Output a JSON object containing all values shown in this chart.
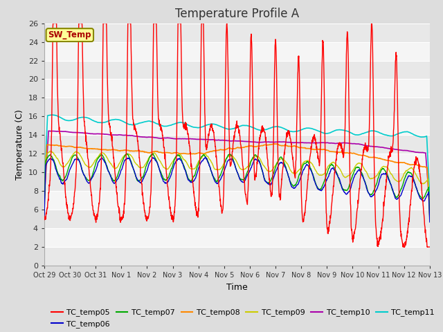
{
  "title": "Temperature Profile A",
  "xlabel": "Time",
  "ylabel": "Temperature (C)",
  "ylim": [
    0,
    26
  ],
  "yticks": [
    0,
    2,
    4,
    6,
    8,
    10,
    12,
    14,
    16,
    18,
    20,
    22,
    24,
    26
  ],
  "xtick_labels": [
    "Oct 29",
    "Oct 30",
    "Oct 31",
    "Nov 1",
    "Nov 2",
    "Nov 3",
    "Nov 4",
    "Nov 5",
    "Nov 6",
    "Nov 7",
    "Nov 8",
    "Nov 9",
    "Nov 10",
    "Nov 11",
    "Nov 12",
    "Nov 13"
  ],
  "sw_temp_label": "SW_Temp",
  "sw_temp_color": "#aa0000",
  "sw_temp_bg": "#ffff99",
  "sw_temp_border": "#888800",
  "series_colors": {
    "TC_temp05": "#ff0000",
    "TC_temp06": "#0000cc",
    "TC_temp07": "#00aa00",
    "TC_temp08": "#ff8800",
    "TC_temp09": "#cccc00",
    "TC_temp10": "#aa00aa",
    "TC_temp11": "#00cccc"
  },
  "bg_band_color": "#e8e8e8",
  "plot_bg": "#f5f5f5",
  "grid_color": "#ffffff",
  "title_fontsize": 12,
  "axis_fontsize": 9,
  "tick_fontsize": 8,
  "legend_fontsize": 8
}
